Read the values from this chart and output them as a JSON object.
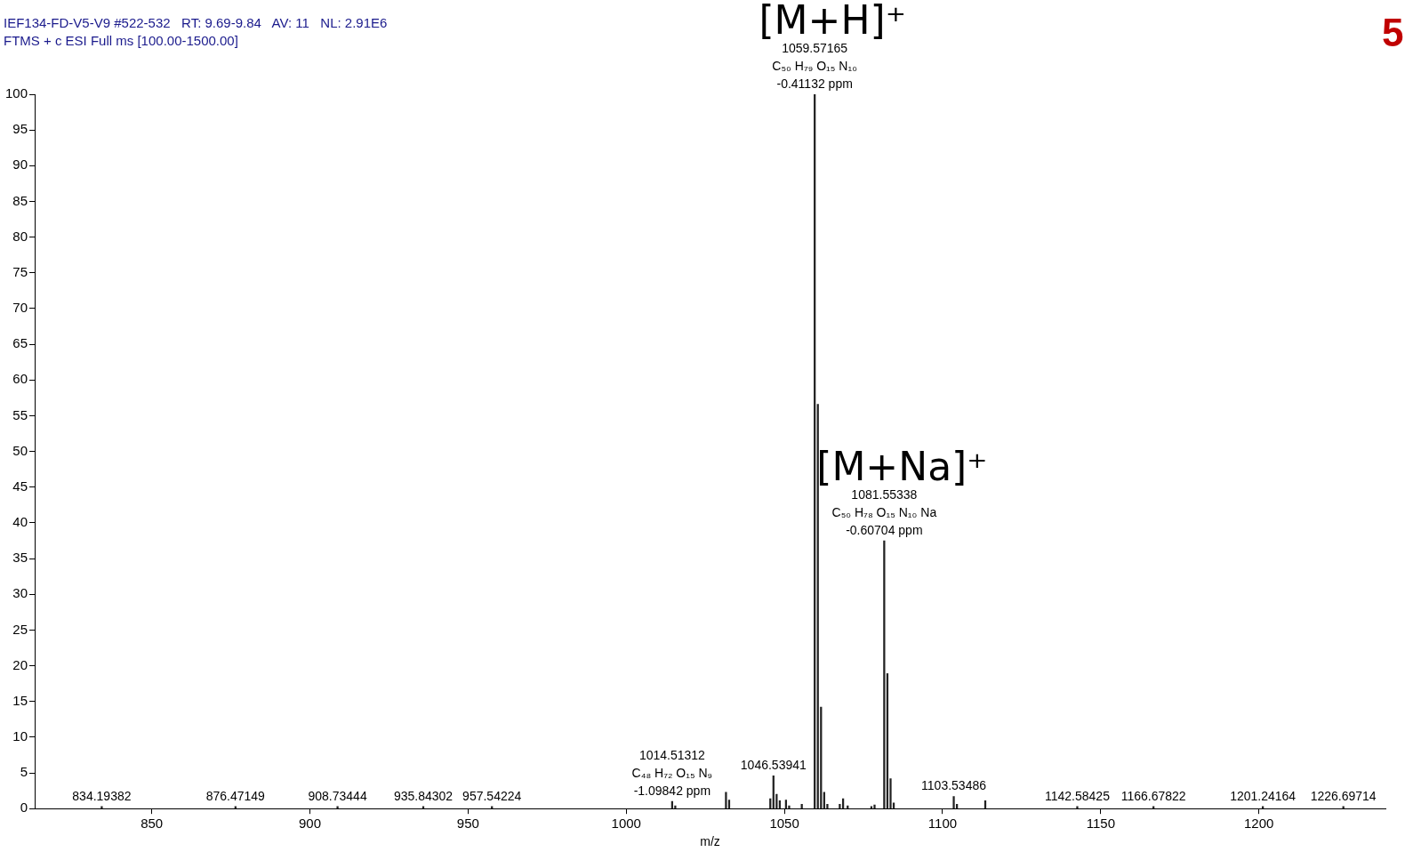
{
  "chart_data": {
    "type": "bar",
    "title": "IEF134-FD-V5-V9 #522-532   RT: 9.69-9.84   AV: 11   NL: 2.91E6",
    "subtitle": "FTMS + c ESI Full ms [100.00-1500.00]",
    "xlabel": "m/z",
    "x": [
      834.19382,
      876.47149,
      908.73444,
      935.84302,
      957.54224,
      1014.51312,
      1015.5,
      1031.53,
      1032.53,
      1045.54,
      1046.53941,
      1047.54,
      1048.54,
      1050.5,
      1051.5,
      1055.5,
      1059.57165,
      1060.575,
      1061.578,
      1062.58,
      1063.58,
      1067.5,
      1068.55,
      1070,
      1077.5,
      1078.5,
      1081.55338,
      1082.557,
      1083.56,
      1084.56,
      1103.53486,
      1104.54,
      1113.5,
      1142.58425,
      1166.67822,
      1201.24164,
      1226.69714
    ],
    "values": [
      0.3,
      0.3,
      0.3,
      0.3,
      0.3,
      1.0,
      0.4,
      2.3,
      1.2,
      1.4,
      4.6,
      2.0,
      1.1,
      1.2,
      0.4,
      0.6,
      100,
      56.6,
      14.2,
      2.3,
      0.6,
      0.6,
      1.4,
      0.4,
      0.3,
      0.5,
      37.5,
      18.9,
      4.2,
      0.8,
      1.7,
      0.6,
      1.1,
      0.3,
      0.3,
      0.3,
      0.3
    ],
    "color": "#222222",
    "xlim": [
      813,
      1240
    ],
    "xticks": [
      850,
      900,
      950,
      1000,
      1050,
      1100,
      1150,
      1200
    ],
    "ylim": [
      0,
      100
    ],
    "yticks": [
      0,
      5,
      10,
      15,
      20,
      25,
      30,
      35,
      40,
      45,
      50,
      55,
      60,
      65,
      70,
      75,
      80,
      85,
      90,
      95,
      100
    ],
    "grid": false,
    "legend": false,
    "annotations": [
      {
        "text": "[M+H]⁺",
        "x": 1059.57165,
        "y": 100
      },
      {
        "text": "1059.57165\nC₅₀ H₇₉ O₁₅ N₁₀\n-0.41132 ppm",
        "x": 1059.57165,
        "y": 100
      },
      {
        "text": "[M+Na]⁺",
        "x": 1081.55338,
        "y": 37.5
      },
      {
        "text": "1081.55338\nC₅₀ H₇₈ O₁₅ N₁₀ Na\n-0.60704 ppm",
        "x": 1081.55338,
        "y": 37.5
      },
      {
        "text": "1014.51312\nC₄₈ H₇₂ O₁₅ N₉\n-1.09842 ppm",
        "x": 1014.51312,
        "y": 1.0
      },
      {
        "text": "1046.53941",
        "x": 1046.53941,
        "y": 4.6
      },
      {
        "text": "1103.53486",
        "x": 1103.53486,
        "y": 1.7
      },
      {
        "text": "834.19382",
        "x": 834.19382,
        "y": 0.3
      },
      {
        "text": "876.47149",
        "x": 876.47149,
        "y": 0.3
      },
      {
        "text": "908.73444",
        "x": 908.73444,
        "y": 0.3
      },
      {
        "text": "935.84302",
        "x": 935.84302,
        "y": 0.3
      },
      {
        "text": "957.54224",
        "x": 957.54224,
        "y": 0.3
      },
      {
        "text": "1142.58425",
        "x": 1142.58425,
        "y": 0.3
      },
      {
        "text": "1166.67822",
        "x": 1166.67822,
        "y": 0.3
      },
      {
        "text": "1201.24164",
        "x": 1201.24164,
        "y": 0.3
      },
      {
        "text": "1226.69714",
        "x": 1226.69714,
        "y": 0.3
      },
      "5"
    ]
  }
}
